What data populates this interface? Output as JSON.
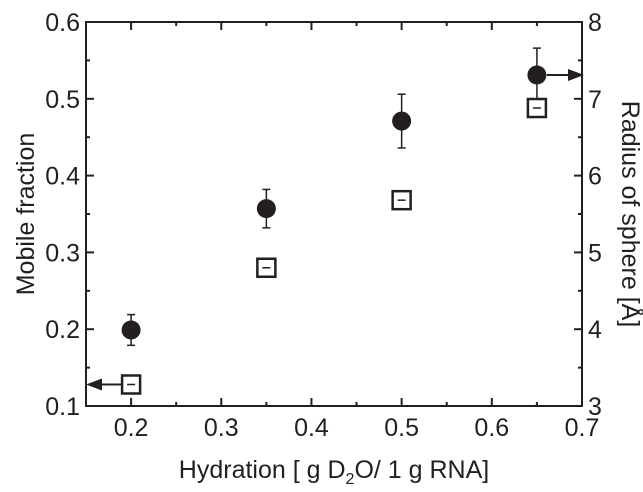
{
  "chart_data": {
    "type": "scatter",
    "title": "",
    "xlabel": {
      "prefix": "Hydration [ g D",
      "subscript": "2",
      "suffix": "O/ 1 g RNA]"
    },
    "ylabel": "Mobile fraction",
    "y2label": "Radius of sphere [Å]",
    "xlim": [
      0.15,
      0.7
    ],
    "ylim": [
      0.1,
      0.6
    ],
    "y2lim": [
      3,
      8
    ],
    "xticks": [
      "0.2",
      "0.3",
      "0.4",
      "0.5",
      "0.6",
      "0.7"
    ],
    "yticks": [
      "0.1",
      "0.2",
      "0.3",
      "0.4",
      "0.5",
      "0.6"
    ],
    "y2ticks": [
      "3",
      "4",
      "5",
      "6",
      "7",
      "8"
    ],
    "grid": false,
    "series": [
      {
        "marker": "filled-circle",
        "axis": "left",
        "points": [
          {
            "x": 0.2,
            "y": 0.199,
            "err": 0.02
          },
          {
            "x": 0.35,
            "y": 0.357,
            "err": 0.025
          },
          {
            "x": 0.5,
            "y": 0.471,
            "err": 0.035
          },
          {
            "x": 0.65,
            "y": 0.531,
            "err": 0.035
          }
        ]
      },
      {
        "marker": "open-square",
        "axis": "right",
        "points": [
          {
            "x": 0.2,
            "y": 3.28,
            "err": 0.08
          },
          {
            "x": 0.35,
            "y": 4.8,
            "err": 0.08
          },
          {
            "x": 0.5,
            "y": 5.68,
            "err": 0.08
          },
          {
            "x": 0.65,
            "y": 6.88,
            "err": 0.08
          }
        ]
      }
    ],
    "colors": {
      "ink": "#231f20",
      "background": "#ffffff"
    }
  }
}
